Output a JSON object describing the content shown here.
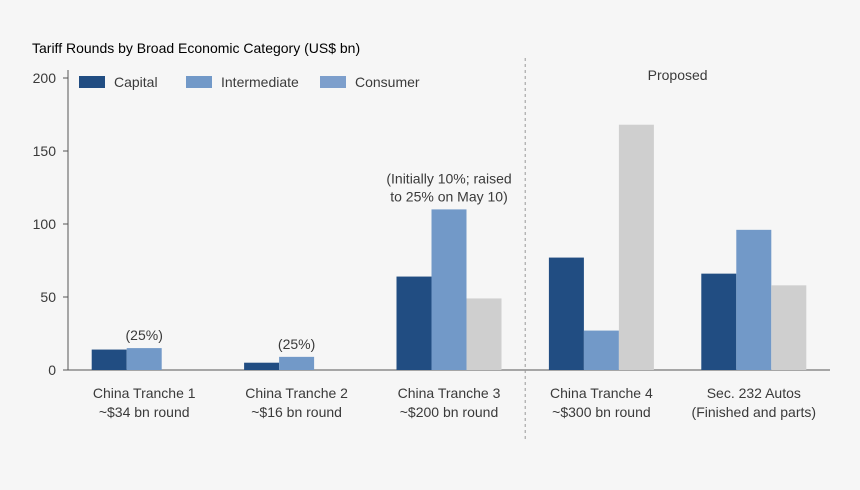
{
  "colors": {
    "capital": "#214d82",
    "intermediate": "#7299c8",
    "consumer": "#cfcfcf",
    "consumer_legend": "#7d9fcc",
    "axis": "#555555",
    "text": "#3a3a3a",
    "divider": "#9a9a9a"
  },
  "chart_data": {
    "type": "bar",
    "title": "Tariff Rounds by Broad Economic Category (US$ bn)",
    "xlabel": "",
    "ylabel": "",
    "ylim": [
      0,
      200
    ],
    "yticks": [
      0,
      50,
      100,
      150,
      200
    ],
    "grid": false,
    "legend_placement": "top-left",
    "categories": [
      [
        "China Tranche 1",
        "~$34 bn round"
      ],
      [
        "China Tranche 2",
        "~$16 bn round"
      ],
      [
        "China Tranche 3",
        "~$200 bn round"
      ],
      [
        "China Tranche 4",
        "~$300 bn round"
      ],
      [
        "Sec. 232 Autos",
        "(Finished and parts)"
      ]
    ],
    "series": [
      {
        "name": "Capital",
        "key": "capital",
        "values": [
          14,
          5,
          64,
          77,
          66
        ]
      },
      {
        "name": "Intermediate",
        "key": "intermediate",
        "values": [
          15,
          9,
          110,
          27,
          96
        ]
      },
      {
        "name": "Consumer",
        "key": "consumer",
        "values": [
          0,
          0,
          49,
          168,
          58
        ]
      }
    ],
    "annotations": [
      {
        "text": [
          "(25%)"
        ],
        "category_index": 0,
        "anchor_value": 15
      },
      {
        "text": [
          "(25%)"
        ],
        "category_index": 1,
        "anchor_value": 9
      },
      {
        "text": [
          "(Initially 10%; raised",
          "to 25% on May 10)"
        ],
        "category_index": 2,
        "anchor_value": 110
      }
    ],
    "section_label": "Proposed",
    "proposed_from_index": 3
  }
}
